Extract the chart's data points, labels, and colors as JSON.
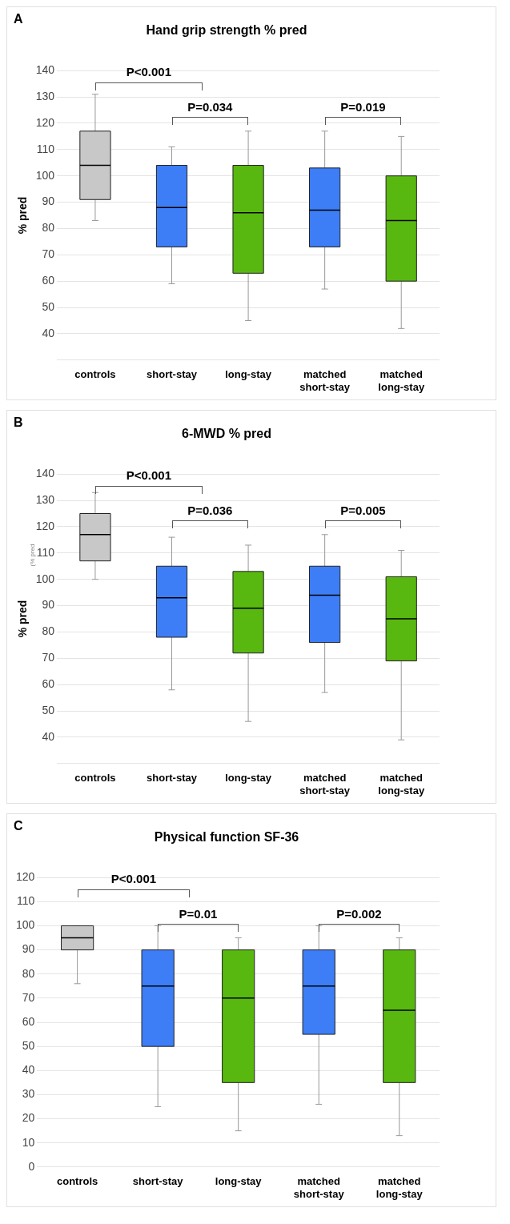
{
  "chart_data": [
    {
      "type": "box",
      "title": "Hand grip strength % pred",
      "ylabel": "% pred",
      "categories": [
        "controls",
        "short-stay",
        "long-stay",
        "matched short-stay",
        "matched long-stay"
      ],
      "colors": [
        "#c8c8c8",
        "#3d7ef7",
        "#58b80f",
        "#3d7ef7",
        "#58b80f"
      ],
      "boxes": [
        {
          "low": 83,
          "q1": 91,
          "median": 104,
          "q3": 117,
          "high": 131
        },
        {
          "low": 59,
          "q1": 73,
          "median": 88,
          "q3": 104,
          "high": 111
        },
        {
          "low": 45,
          "q1": 63,
          "median": 86,
          "q3": 104,
          "high": 117
        },
        {
          "low": 57,
          "q1": 73,
          "median": 87,
          "q3": 103,
          "high": 117
        },
        {
          "low": 42,
          "q1": 60,
          "median": 83,
          "q3": 100,
          "high": 115
        }
      ],
      "ylim": [
        30,
        140
      ],
      "yticks": [
        {
          "value": 30,
          "label": null
        },
        40,
        50,
        60,
        70,
        80,
        90,
        100,
        110,
        120,
        130,
        140
      ],
      "grid": "y",
      "annotations": [
        "A",
        "P<0.001",
        "P=0.034",
        "P=0.019"
      ]
    },
    {
      "type": "box",
      "title": "6-MWD % pred",
      "ylabel": "% pred",
      "categories": [
        "controls",
        "short-stay",
        "long-stay",
        "matched short-stay",
        "matched long-stay"
      ],
      "colors": [
        "#c8c8c8",
        "#3d7ef7",
        "#58b80f",
        "#3d7ef7",
        "#58b80f"
      ],
      "boxes": [
        {
          "low": 100,
          "q1": 107,
          "median": 117,
          "q3": 125,
          "high": 133
        },
        {
          "low": 58,
          "q1": 78,
          "median": 93,
          "q3": 105,
          "high": 116
        },
        {
          "low": 46,
          "q1": 72,
          "median": 89,
          "q3": 103,
          "high": 113
        },
        {
          "low": 57,
          "q1": 76,
          "median": 94,
          "q3": 105,
          "high": 117
        },
        {
          "low": 39,
          "q1": 69,
          "median": 85,
          "q3": 101,
          "high": 111
        }
      ],
      "ylim": [
        30,
        140
      ],
      "yticks": [
        {
          "value": 30,
          "label": null
        },
        40,
        50,
        60,
        70,
        80,
        90,
        100,
        110,
        120,
        130,
        140
      ],
      "grid": "y",
      "annotations": [
        "B",
        "P<0.001",
        "P=0.036",
        "P=0.005",
        "(% pred"
      ]
    },
    {
      "type": "box",
      "title": "Physical function SF-36",
      "categories": [
        "controls",
        "short-stay",
        "long-stay",
        "matched short-stay",
        "matched long-stay"
      ],
      "colors": [
        "#c8c8c8",
        "#3d7ef7",
        "#58b80f",
        "#3d7ef7",
        "#58b80f"
      ],
      "boxes": [
        {
          "low": 76,
          "q1": 90,
          "median": 95,
          "q3": 100,
          "high": 100
        },
        {
          "low": 25,
          "q1": 50,
          "median": 75,
          "q3": 90,
          "high": 100
        },
        {
          "low": 15,
          "q1": 35,
          "median": 70,
          "q3": 90,
          "high": 95
        },
        {
          "low": 26,
          "q1": 55,
          "median": 75,
          "q3": 90,
          "high": 100
        },
        {
          "low": 13,
          "q1": 35,
          "median": 65,
          "q3": 90,
          "high": 95
        }
      ],
      "ylim": [
        0,
        120
      ],
      "yticks": [
        0,
        10,
        20,
        30,
        40,
        50,
        60,
        70,
        80,
        90,
        100,
        110,
        120
      ],
      "grid": "y",
      "annotations": [
        "C",
        "P<0.001",
        "P=0.01",
        "P=0.002"
      ]
    }
  ]
}
